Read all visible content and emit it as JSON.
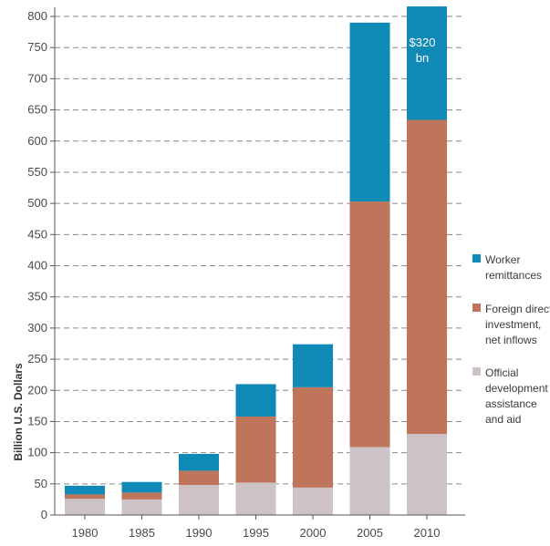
{
  "chart_data": {
    "type": "bar",
    "stacked": true,
    "categories": [
      "1980",
      "1985",
      "1990",
      "1995",
      "2000",
      "2005",
      "2010"
    ],
    "series": [
      {
        "name": "Official development assistance and aid",
        "color": "#cdc2c6",
        "values": [
          26,
          25,
          48,
          52,
          44,
          109,
          130
        ]
      },
      {
        "name": "Foreign direct investment, net inflows",
        "color": "#bf7559",
        "values": [
          7,
          11,
          23,
          106,
          161,
          394,
          504
        ]
      },
      {
        "name": "Worker remittances",
        "color": "#0f89b6",
        "values": [
          14,
          17,
          27,
          52,
          69,
          287,
          182
        ]
      }
    ],
    "ylabel": "Billion U.S. Dollars",
    "ylim": [
      0,
      820
    ],
    "yticks": [
      0,
      50,
      100,
      150,
      200,
      250,
      300,
      350,
      400,
      450,
      500,
      550,
      600,
      650,
      700,
      750,
      800
    ],
    "grid": true,
    "legend_position": "right",
    "annotation": "$320\nbn"
  },
  "legend": [
    {
      "color": "#0f89b6",
      "label": "Worker\nremittances"
    },
    {
      "color": "#bf7559",
      "label": "Foreign direct\ninvestment,\nnet inflows"
    },
    {
      "color": "#cdc2c6",
      "label": "Official\ndevelopment\nassistance\nand aid"
    }
  ]
}
